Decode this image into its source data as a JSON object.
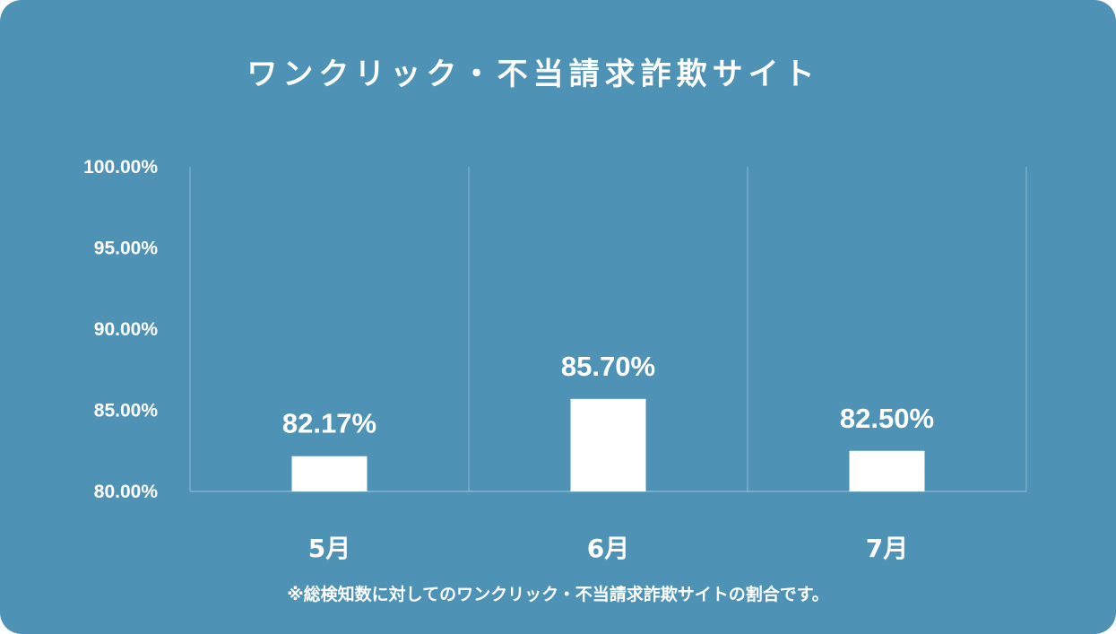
{
  "chart_data": {
    "type": "bar",
    "title": "ワンクリック・不当請求詐欺サイト",
    "categories": [
      "5月",
      "6月",
      "7月"
    ],
    "values": [
      82.17,
      85.7,
      82.5
    ],
    "data_labels": [
      "82.17%",
      "85.70%",
      "82.50%"
    ],
    "ylim": [
      80,
      100
    ],
    "yticks": [
      80,
      85,
      90,
      95,
      100
    ],
    "ytick_labels": [
      "80.00%",
      "85.00%",
      "90.00%",
      "95.00%",
      "100.00%"
    ],
    "grid": "vertical separators between categories",
    "legend": "none",
    "footnote": "※総検知数に対してのワンクリック・不当請求詐欺サイトの割合です。",
    "colors": {
      "background": "#4e93b6",
      "bar": "#ffffff",
      "text": "#ffffff",
      "grid": "#8dbbd3"
    }
  }
}
